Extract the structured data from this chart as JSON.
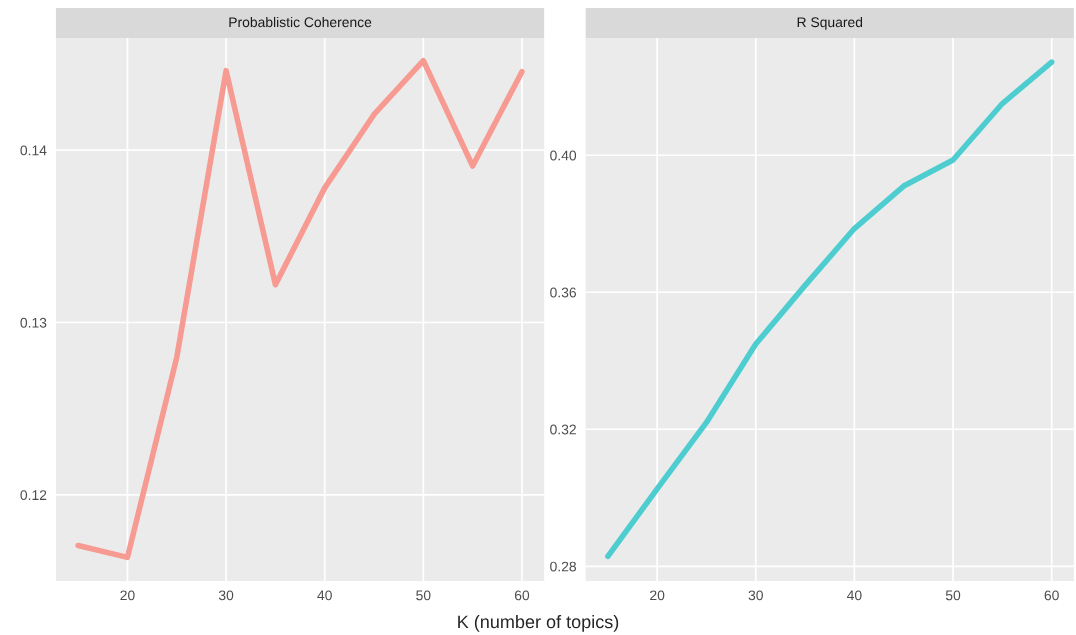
{
  "chart_data": [
    {
      "type": "line",
      "title": "Probablistic Coherence",
      "xlabel": "K (number of topics)",
      "x": [
        15,
        20,
        25,
        30,
        35,
        40,
        45,
        50,
        55,
        60
      ],
      "series": [
        {
          "color": "#f69a92",
          "values": [
            0.11706,
            0.11637,
            0.12798,
            0.14461,
            0.13219,
            0.13781,
            0.14207,
            0.14519,
            0.13908,
            0.14455
          ]
        }
      ],
      "xlim": [
        12.75,
        62.25
      ],
      "xticks": [
        20,
        30,
        40,
        50,
        60
      ],
      "ylim": [
        0.115,
        0.1465
      ],
      "yticks": [
        0.12,
        0.13,
        0.14
      ],
      "grid": true,
      "legend": false
    },
    {
      "type": "line",
      "title": "R Squared",
      "x": [
        15,
        20,
        25,
        30,
        35,
        40,
        45,
        50,
        55,
        60
      ],
      "series": [
        {
          "color": "#4dcdd0",
          "values": [
            0.2829,
            0.3026,
            0.322,
            0.3449,
            0.362,
            0.3786,
            0.391,
            0.3986,
            0.4151,
            0.4272
          ]
        }
      ],
      "xlim": [
        12.75,
        62.25
      ],
      "xticks": [
        20,
        30,
        40,
        50,
        60
      ],
      "ylim": [
        0.2757,
        0.4342
      ],
      "yticks": [
        {
          "value": 0.28,
          "label": "0.28"
        },
        {
          "value": 0.32,
          "label": "0.32"
        },
        {
          "value": 0.36,
          "label": "0.36"
        },
        {
          "value": 0.4,
          "label": "0.40"
        }
      ],
      "grid": true,
      "legend": false
    }
  ]
}
